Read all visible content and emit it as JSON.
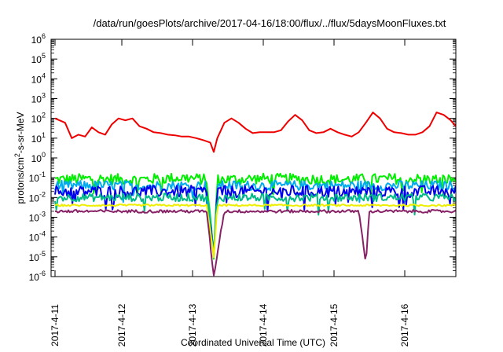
{
  "chart_data": {
    "type": "line",
    "title": "/data/run/goesPlots/archive/2017-04-16/18:00/flux/../flux/5daysMoonFluxes.txt",
    "xlabel": "Coordinated Universal Time (UTC)",
    "ylabel": {
      "prefix": "protons/cm",
      "sup": "2",
      "suffix": "-s-sr-MeV"
    },
    "yscale": "log",
    "ylim": [
      1e-06,
      1000000.0
    ],
    "xlim_days": [
      0,
      5.8
    ],
    "x_start": "2017-4-11",
    "y_ticks": [
      {
        "base": "10",
        "exp": "-6",
        "value": -6
      },
      {
        "base": "10",
        "exp": "-5",
        "value": -5
      },
      {
        "base": "10",
        "exp": "-4",
        "value": -4
      },
      {
        "base": "10",
        "exp": "-3",
        "value": -3
      },
      {
        "base": "10",
        "exp": "-2",
        "value": -2
      },
      {
        "base": "10",
        "exp": "-1",
        "value": -1
      },
      {
        "base": "10",
        "exp": "0",
        "value": 0
      },
      {
        "base": "10",
        "exp": "1",
        "value": 1
      },
      {
        "base": "10",
        "exp": "2",
        "value": 2
      },
      {
        "base": "10",
        "exp": "3",
        "value": 3
      },
      {
        "base": "10",
        "exp": "4",
        "value": 4
      },
      {
        "base": "10",
        "exp": "5",
        "value": 5
      },
      {
        "base": "10",
        "exp": "6",
        "value": 6
      }
    ],
    "x_ticks": [
      {
        "label": "2017-4-11",
        "day": 0
      },
      {
        "label": "2017-4-12",
        "day": 1
      },
      {
        "label": "2017-4-13",
        "day": 2
      },
      {
        "label": "2017-4-14",
        "day": 3
      },
      {
        "label": "2017-4-15",
        "day": 4
      },
      {
        "label": "2017-4-16",
        "day": 5
      }
    ],
    "grid": false,
    "series": [
      {
        "color": "#ee0000",
        "points": [
          [
            0.0,
            100
          ],
          [
            0.15,
            60
          ],
          [
            0.25,
            10
          ],
          [
            0.35,
            15
          ],
          [
            0.45,
            12
          ],
          [
            0.55,
            35
          ],
          [
            0.65,
            20
          ],
          [
            0.75,
            15
          ],
          [
            0.85,
            50
          ],
          [
            0.95,
            100
          ],
          [
            1.05,
            80
          ],
          [
            1.15,
            100
          ],
          [
            1.25,
            40
          ],
          [
            1.35,
            30
          ],
          [
            1.45,
            20
          ],
          [
            1.55,
            18
          ],
          [
            1.65,
            15
          ],
          [
            1.75,
            14
          ],
          [
            1.85,
            12
          ],
          [
            1.95,
            12
          ],
          [
            2.05,
            10
          ],
          [
            2.15,
            8
          ],
          [
            2.25,
            6
          ],
          [
            2.3,
            2
          ],
          [
            2.35,
            10
          ],
          [
            2.45,
            60
          ],
          [
            2.55,
            100
          ],
          [
            2.65,
            60
          ],
          [
            2.75,
            30
          ],
          [
            2.85,
            18
          ],
          [
            2.95,
            20
          ],
          [
            3.05,
            20
          ],
          [
            3.15,
            20
          ],
          [
            3.25,
            25
          ],
          [
            3.35,
            70
          ],
          [
            3.45,
            150
          ],
          [
            3.55,
            80
          ],
          [
            3.65,
            25
          ],
          [
            3.75,
            18
          ],
          [
            3.85,
            20
          ],
          [
            3.95,
            30
          ],
          [
            4.05,
            20
          ],
          [
            4.15,
            15
          ],
          [
            4.25,
            12
          ],
          [
            4.35,
            20
          ],
          [
            4.45,
            60
          ],
          [
            4.55,
            200
          ],
          [
            4.65,
            100
          ],
          [
            4.75,
            30
          ],
          [
            4.85,
            20
          ],
          [
            4.95,
            18
          ],
          [
            5.05,
            15
          ],
          [
            5.15,
            15
          ],
          [
            5.25,
            20
          ],
          [
            5.35,
            40
          ],
          [
            5.45,
            200
          ],
          [
            5.55,
            150
          ],
          [
            5.65,
            80
          ],
          [
            5.75,
            30
          ],
          [
            5.85,
            20
          ],
          [
            5.95,
            15
          ],
          [
            6.05,
            20
          ],
          [
            6.15,
            30
          ],
          [
            6.25,
            35
          ],
          [
            6.35,
            30
          ],
          [
            6.45,
            25
          ],
          [
            6.5,
            30
          ]
        ]
      },
      {
        "color": "#00ee00",
        "base": 0.08,
        "noise": 0.55,
        "points": [
          [
            0.0,
            0.08
          ],
          [
            0.6,
            0.09
          ],
          [
            1.2,
            0.08
          ],
          [
            1.9,
            0.1
          ],
          [
            2.2,
            0.08
          ],
          [
            2.3,
            1e-05
          ],
          [
            2.35,
            0.08
          ],
          [
            3.0,
            0.09
          ],
          [
            4.1,
            0.08
          ],
          [
            4.9,
            0.09
          ],
          [
            5.5,
            0.08
          ],
          [
            6.5,
            0.1
          ]
        ]
      },
      {
        "color": "#00aaee",
        "base": 0.04,
        "noise": 0.5,
        "points": [
          [
            0.0,
            0.04
          ],
          [
            1.0,
            0.04
          ],
          [
            2.2,
            0.04
          ],
          [
            2.3,
            1e-05
          ],
          [
            2.35,
            0.04
          ],
          [
            4.0,
            0.04
          ],
          [
            5.5,
            0.04
          ],
          [
            6.5,
            0.04
          ]
        ]
      },
      {
        "color": "#0000ee",
        "base": 0.02,
        "noise": 0.6,
        "points": [
          [
            0.0,
            0.02
          ],
          [
            1.0,
            0.02
          ],
          [
            2.2,
            0.02
          ],
          [
            2.3,
            1e-05
          ],
          [
            2.35,
            0.02
          ],
          [
            4.0,
            0.02
          ],
          [
            4.5,
            0.02
          ],
          [
            5.5,
            0.02
          ],
          [
            6.5,
            0.02
          ]
        ]
      },
      {
        "color": "#00bb88",
        "base": 0.01,
        "noise": 0.4,
        "points": [
          [
            0.0,
            0.01
          ],
          [
            2.2,
            0.01
          ],
          [
            2.3,
            1e-05
          ],
          [
            2.35,
            0.01
          ],
          [
            6.5,
            0.01
          ]
        ]
      },
      {
        "color": "#eeee00",
        "base": 0.004,
        "noise": 0.1,
        "points": [
          [
            0.0,
            0.004
          ],
          [
            2.2,
            0.004
          ],
          [
            2.3,
            1e-05
          ],
          [
            2.35,
            0.004
          ],
          [
            6.5,
            0.004
          ]
        ]
      },
      {
        "color": "#882266",
        "base": 0.002,
        "noise": 0.15,
        "points": [
          [
            0.0,
            0.002
          ],
          [
            2.2,
            0.002
          ],
          [
            2.3,
            1e-06
          ],
          [
            2.4,
            0.0002
          ],
          [
            2.45,
            0.002
          ],
          [
            4.35,
            0.002
          ],
          [
            4.45,
            5e-06
          ],
          [
            4.5,
            0.002
          ],
          [
            6.5,
            0.002
          ]
        ]
      }
    ]
  }
}
